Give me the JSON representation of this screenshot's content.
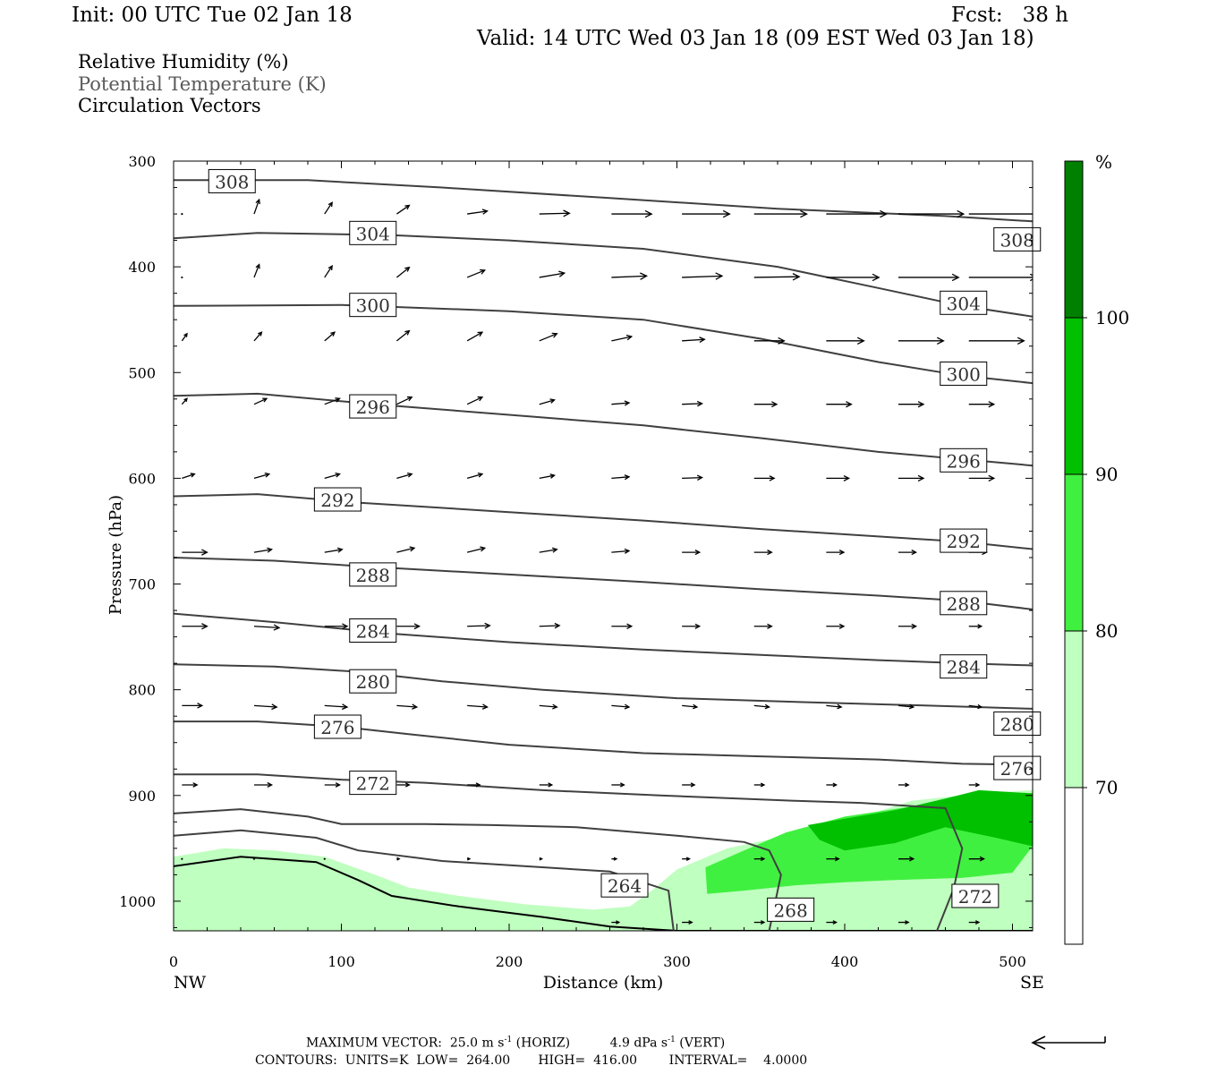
{
  "header": {
    "init": "Init: 00 UTC Tue 02 Jan 18",
    "fcst": "Fcst:   38 h",
    "valid": "Valid: 14 UTC Wed 03 Jan 18 (09 EST Wed 03 Jan 18)"
  },
  "legend": {
    "rh": "Relative Humidity (%)",
    "theta": "Potential Temperature (K)",
    "vectors": "Circulation Vectors"
  },
  "footer": {
    "max_vector_label": "MAXIMUM VECTOR:",
    "horiz_value": "25.0 m s",
    "horiz_tag": "(HORIZ)",
    "vert_value": "4.9 dPa s",
    "vert_tag": "(VERT)",
    "exponent": "-1",
    "contours_line": "CONTOURS:  UNITS=K  LOW=  264.00       HIGH=  416.00        INTERVAL=    4.0000"
  },
  "colors": {
    "rh_70": "#bfffbf",
    "rh_80": "#40f040",
    "rh_90": "#00c000",
    "rh_100": "#008000",
    "contour": "#404040",
    "vector": "#000000"
  },
  "chart_data": {
    "type": "cross-section",
    "xlabel": "Distance (km)",
    "ylabel": "Pressure (hPa)",
    "x_left_label": "NW",
    "x_right_label": "SE",
    "xlim": [
      0,
      512
    ],
    "ylim": [
      300,
      1028
    ],
    "y_inverted": true,
    "xticks": [
      0,
      100,
      200,
      300,
      400,
      500
    ],
    "yticks": [
      300,
      400,
      500,
      600,
      700,
      800,
      900,
      1000
    ],
    "colorbar": {
      "unit": "%",
      "ticks": [
        70,
        80,
        90,
        100
      ],
      "bins": [
        {
          "from": 60,
          "to": 70,
          "color": "#ffffff"
        },
        {
          "from": 70,
          "to": 80,
          "color": "#bfffbf"
        },
        {
          "from": 80,
          "to": 90,
          "color": "#40f040"
        },
        {
          "from": 90,
          "to": 100,
          "color": "#00c000"
        },
        {
          "from": 100,
          "to": 110,
          "color": "#008000"
        }
      ]
    },
    "rh_regions": [
      {
        "level": 70,
        "points": [
          [
            0,
            958
          ],
          [
            30,
            950
          ],
          [
            60,
            952
          ],
          [
            90,
            958
          ],
          [
            120,
            975
          ],
          [
            140,
            987
          ],
          [
            170,
            995
          ],
          [
            210,
            1003
          ],
          [
            250,
            1008
          ],
          [
            272,
            1005
          ],
          [
            285,
            990
          ],
          [
            300,
            970
          ],
          [
            330,
            950
          ],
          [
            360,
            940
          ],
          [
            400,
            925
          ],
          [
            440,
            905
          ],
          [
            480,
            898
          ],
          [
            512,
            895
          ],
          [
            512,
            1028
          ],
          [
            0,
            1028
          ]
        ]
      },
      {
        "level": 80,
        "points": [
          [
            317,
            968
          ],
          [
            340,
            952
          ],
          [
            365,
            935
          ],
          [
            400,
            920
          ],
          [
            450,
            908
          ],
          [
            470,
            905
          ],
          [
            512,
            912
          ],
          [
            512,
            948
          ],
          [
            500,
            973
          ],
          [
            470,
            978
          ],
          [
            430,
            980
          ],
          [
            400,
            982
          ],
          [
            370,
            985
          ],
          [
            340,
            990
          ],
          [
            318,
            993
          ]
        ]
      },
      {
        "level": 90,
        "points": [
          [
            378,
            928
          ],
          [
            400,
            922
          ],
          [
            430,
            914
          ],
          [
            460,
            903
          ],
          [
            480,
            895
          ],
          [
            512,
            898
          ],
          [
            512,
            948
          ],
          [
            490,
            940
          ],
          [
            460,
            930
          ],
          [
            430,
            945
          ],
          [
            400,
            952
          ],
          [
            385,
            942
          ]
        ]
      }
    ],
    "theta_contours": [
      {
        "value": 308,
        "points": [
          [
            0,
            318
          ],
          [
            80,
            318
          ],
          [
            160,
            325
          ],
          [
            260,
            335
          ],
          [
            360,
            345
          ],
          [
            460,
            352
          ],
          [
            512,
            357
          ]
        ],
        "labels": [
          [
            22,
            319
          ],
          [
            490,
            374
          ]
        ]
      },
      {
        "value": 304,
        "points": [
          [
            0,
            373
          ],
          [
            50,
            368
          ],
          [
            130,
            370
          ],
          [
            200,
            375
          ],
          [
            280,
            383
          ],
          [
            360,
            400
          ],
          [
            420,
            420
          ],
          [
            470,
            437
          ],
          [
            512,
            447
          ]
        ],
        "labels": [
          [
            106,
            368
          ],
          [
            458,
            434
          ]
        ]
      },
      {
        "value": 300,
        "points": [
          [
            0,
            437
          ],
          [
            100,
            436
          ],
          [
            200,
            442
          ],
          [
            280,
            450
          ],
          [
            350,
            468
          ],
          [
            420,
            490
          ],
          [
            470,
            503
          ],
          [
            512,
            510
          ]
        ],
        "labels": [
          [
            106,
            436
          ],
          [
            458,
            501
          ]
        ]
      },
      {
        "value": 296,
        "points": [
          [
            0,
            522
          ],
          [
            50,
            520
          ],
          [
            120,
            530
          ],
          [
            200,
            540
          ],
          [
            280,
            550
          ],
          [
            350,
            562
          ],
          [
            420,
            575
          ],
          [
            470,
            582
          ],
          [
            512,
            588
          ]
        ],
        "labels": [
          [
            106,
            532
          ],
          [
            458,
            583
          ]
        ]
      },
      {
        "value": 292,
        "points": [
          [
            0,
            617
          ],
          [
            50,
            615
          ],
          [
            110,
            623
          ],
          [
            200,
            632
          ],
          [
            280,
            640
          ],
          [
            350,
            648
          ],
          [
            420,
            655
          ],
          [
            470,
            660
          ],
          [
            512,
            667
          ]
        ],
        "labels": [
          [
            85,
            620
          ],
          [
            458,
            659
          ]
        ]
      },
      {
        "value": 288,
        "points": [
          [
            0,
            675
          ],
          [
            60,
            678
          ],
          [
            120,
            684
          ],
          [
            200,
            691
          ],
          [
            280,
            698
          ],
          [
            350,
            705
          ],
          [
            420,
            711
          ],
          [
            470,
            716
          ],
          [
            512,
            724
          ]
        ],
        "labels": [
          [
            106,
            691
          ],
          [
            458,
            718
          ]
        ]
      },
      {
        "value": 284,
        "points": [
          [
            0,
            728
          ],
          [
            60,
            736
          ],
          [
            130,
            747
          ],
          [
            200,
            755
          ],
          [
            280,
            762
          ],
          [
            350,
            767
          ],
          [
            420,
            772
          ],
          [
            470,
            775
          ],
          [
            512,
            777
          ]
        ],
        "labels": [
          [
            106,
            744
          ],
          [
            458,
            778
          ]
        ]
      },
      {
        "value": 280,
        "points": [
          [
            0,
            776
          ],
          [
            60,
            778
          ],
          [
            110,
            783
          ],
          [
            160,
            792
          ],
          [
            220,
            800
          ],
          [
            300,
            808
          ],
          [
            380,
            812
          ],
          [
            450,
            815
          ],
          [
            512,
            818
          ]
        ],
        "labels": [
          [
            106,
            792
          ],
          [
            490,
            832
          ]
        ]
      },
      {
        "value": 276,
        "points": [
          [
            0,
            830
          ],
          [
            50,
            830
          ],
          [
            100,
            835
          ],
          [
            140,
            842
          ],
          [
            200,
            852
          ],
          [
            280,
            860
          ],
          [
            350,
            863
          ],
          [
            420,
            866
          ],
          [
            470,
            870
          ],
          [
            512,
            871
          ]
        ],
        "labels": [
          [
            85,
            835
          ],
          [
            490,
            874
          ]
        ]
      },
      {
        "value": 272,
        "points": [
          [
            0,
            880
          ],
          [
            50,
            880
          ],
          [
            100,
            885
          ],
          [
            150,
            888
          ],
          [
            220,
            895
          ],
          [
            290,
            900
          ],
          [
            370,
            905
          ],
          [
            410,
            907
          ],
          [
            460,
            912
          ],
          [
            470,
            950
          ],
          [
            465,
            988
          ],
          [
            455,
            1028
          ]
        ],
        "labels": [
          [
            106,
            888
          ],
          [
            465,
            995
          ]
        ]
      },
      {
        "value": 268,
        "points": [
          [
            0,
            917
          ],
          [
            40,
            913
          ],
          [
            80,
            920
          ],
          [
            100,
            927
          ],
          [
            150,
            927
          ],
          [
            190,
            928
          ],
          [
            240,
            930
          ],
          [
            300,
            938
          ],
          [
            340,
            944
          ],
          [
            355,
            952
          ],
          [
            362,
            975
          ],
          [
            355,
            1028
          ]
        ],
        "labels": [
          [
            355,
            1008
          ]
        ]
      },
      {
        "value": 264,
        "points": [
          [
            0,
            938
          ],
          [
            40,
            933
          ],
          [
            85,
            940
          ],
          [
            110,
            952
          ],
          [
            160,
            962
          ],
          [
            210,
            967
          ],
          [
            260,
            972
          ],
          [
            295,
            990
          ],
          [
            298,
            1028
          ]
        ],
        "labels": [
          [
            256,
            985
          ]
        ]
      }
    ],
    "surface_boundary": [
      [
        0,
        967
      ],
      [
        40,
        958
      ],
      [
        85,
        963
      ],
      [
        110,
        980
      ],
      [
        130,
        995
      ],
      [
        170,
        1005
      ],
      [
        220,
        1015
      ],
      [
        260,
        1024
      ],
      [
        300,
        1028
      ],
      [
        512,
        1028
      ]
    ],
    "vectors": {
      "columns": [
        5,
        48,
        90,
        133,
        175,
        218,
        261,
        303,
        346,
        389,
        432,
        474
      ],
      "rows": [
        {
          "p": 350,
          "u": [
            0,
            0.2,
            0.3,
            0.5,
            0.8,
            1.2,
            1.6,
            1.9,
            2.1,
            2.4,
            2.6,
            2.8
          ],
          "w": [
            0,
            10,
            8,
            6,
            2,
            0.5,
            0,
            0,
            0,
            0,
            0,
            0
          ]
        },
        {
          "p": 410,
          "u": [
            0,
            0.2,
            0.3,
            0.5,
            0.7,
            1.0,
            1.4,
            1.6,
            1.8,
            2.1,
            2.4,
            2.7
          ],
          "w": [
            0,
            9,
            8,
            7,
            5,
            3,
            1,
            1,
            0.5,
            0,
            0,
            0
          ]
        },
        {
          "p": 470,
          "u": [
            0.2,
            0.3,
            0.4,
            0.5,
            0.6,
            0.7,
            0.8,
            0.9,
            1.2,
            1.5,
            1.8,
            2.2
          ],
          "w": [
            5,
            6,
            6,
            7,
            6,
            5,
            3,
            1,
            0,
            0,
            0,
            0
          ]
        },
        {
          "p": 530,
          "u": [
            0.2,
            0.5,
            0.6,
            0.6,
            0.6,
            0.6,
            0.7,
            0.8,
            0.9,
            1.0,
            1.0,
            1.0
          ],
          "w": [
            4,
            4,
            4,
            5,
            5,
            3,
            1,
            0.5,
            0,
            0,
            0,
            0
          ]
        },
        {
          "p": 600,
          "u": [
            0.5,
            0.6,
            0.6,
            0.6,
            0.6,
            0.6,
            0.7,
            0.8,
            0.8,
            0.9,
            1.0,
            1.0
          ],
          "w": [
            3,
            3,
            3,
            3,
            3,
            2,
            1,
            0.5,
            0,
            0,
            0,
            0
          ]
        },
        {
          "p": 670,
          "u": [
            1.0,
            0.7,
            0.7,
            0.7,
            0.7,
            0.7,
            0.7,
            0.7,
            0.7,
            0.7,
            0.7,
            0.7
          ],
          "w": [
            0,
            2,
            2,
            3,
            3,
            2,
            1,
            0,
            0,
            0,
            0,
            0
          ]
        },
        {
          "p": 740,
          "u": [
            1.0,
            1.0,
            0.9,
            0.9,
            0.9,
            0.8,
            0.8,
            0.7,
            0.7,
            0.7,
            0.7,
            0.5
          ],
          "w": [
            0,
            -1,
            0,
            0,
            0.5,
            0.5,
            0,
            0,
            0,
            0,
            0,
            0
          ]
        },
        {
          "p": 815,
          "u": [
            0.8,
            0.9,
            0.9,
            0.8,
            0.8,
            0.7,
            0.7,
            0.6,
            0.6,
            0.6,
            0.6,
            0.5
          ],
          "w": [
            0,
            -1,
            -1,
            -1,
            -1,
            -1,
            -1,
            -1,
            -1,
            -1,
            -1,
            -1
          ]
        },
        {
          "p": 890,
          "u": [
            0.6,
            0.7,
            0.6,
            0.5,
            0.5,
            0.5,
            0.5,
            0.5,
            0.4,
            0.4,
            0.4,
            0.4
          ],
          "w": [
            0,
            0,
            0,
            0,
            0,
            0,
            0,
            0,
            0,
            0,
            0,
            0
          ]
        },
        {
          "p": 960,
          "u": [
            0,
            0,
            0,
            0.1,
            0.1,
            0.1,
            0.2,
            0.3,
            0.4,
            0.5,
            0.6,
            0.6
          ],
          "w": [
            0,
            0,
            0,
            0,
            0,
            0,
            0,
            0,
            0,
            0,
            0,
            0
          ]
        },
        {
          "p": 1020,
          "u": [
            0,
            0,
            0,
            0,
            0.1,
            0.2,
            0.3,
            0.4,
            0.4,
            0.4,
            0.4,
            0.4
          ],
          "w": [
            0,
            0,
            0,
            0,
            0,
            0,
            0,
            0,
            0,
            0,
            0,
            0
          ]
        }
      ]
    }
  }
}
